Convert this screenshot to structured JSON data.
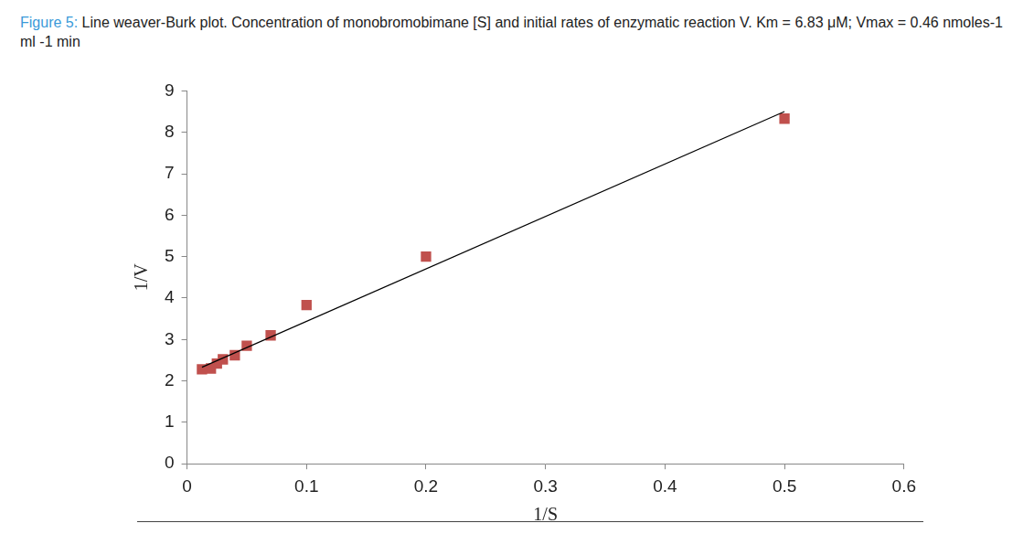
{
  "chart_data": {
    "type": "scatter",
    "title": "Figure 5: Line weaver-Burk plot. Concentration of monobromobimane [S] and initial rates of enzymatic reaction V. Km = 6.83 μM; Vmax = 0.46 nmoles-1 ml -1 min",
    "x_label": "1/S",
    "y_label": "1/V",
    "series": [
      {
        "x": [
          0.5,
          0.2,
          0.1,
          0.07,
          0.05,
          0.04,
          0.03,
          0.025,
          0.02,
          0.0125
        ],
        "values": [
          8.33,
          5.0,
          3.83,
          3.1,
          2.85,
          2.62,
          2.52,
          2.42,
          2.3,
          2.28
        ],
        "color": "#c0504d",
        "marker": "square"
      },
      {
        "type": "line",
        "x": [
          0.0125,
          0.5
        ],
        "values": [
          2.33,
          8.5
        ],
        "color": "#000000",
        "line_style": "solid"
      }
    ],
    "xlim": [
      0,
      0.6
    ],
    "xticks": [
      0,
      0.1,
      0.2,
      0.3,
      0.4,
      0.5,
      0.6
    ],
    "ylim": [
      0,
      9
    ],
    "yticks": [
      0,
      1,
      2,
      3,
      4,
      5,
      6,
      7,
      8,
      9
    ],
    "grid": false
  }
}
